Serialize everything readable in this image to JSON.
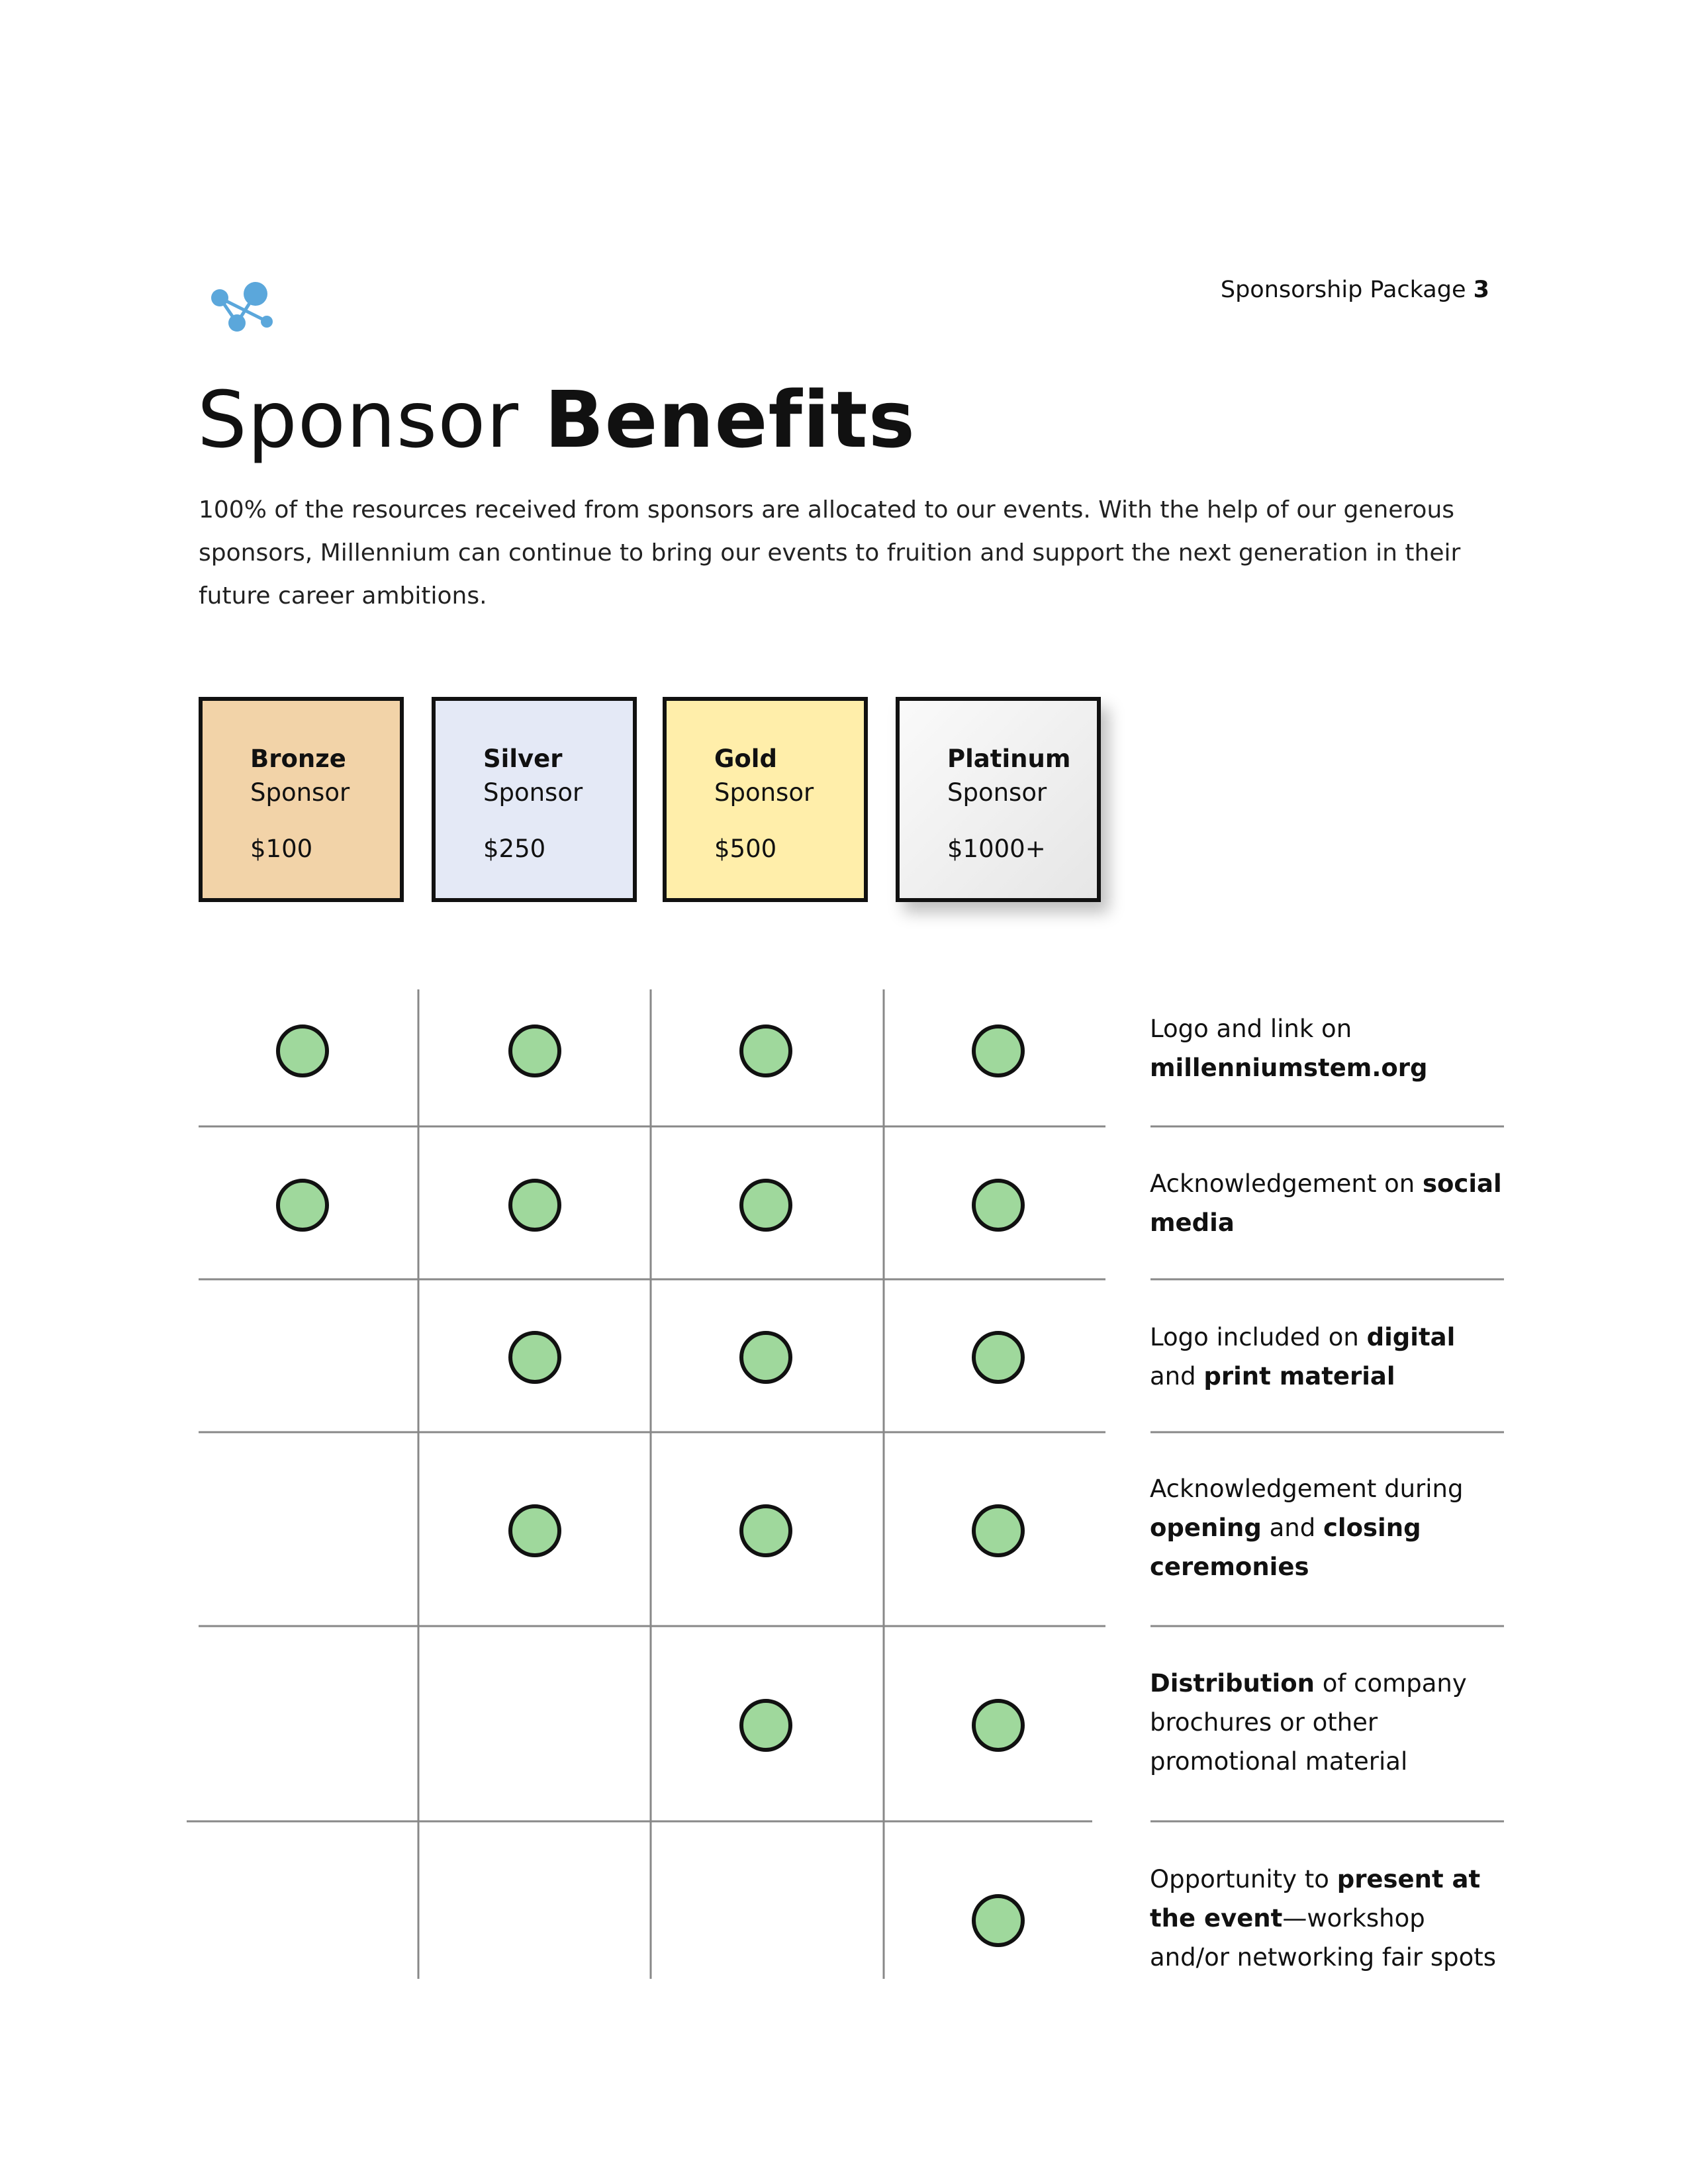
{
  "header": {
    "text": "Sponsorship Package",
    "page_number": "3"
  },
  "title": {
    "light": "Sponsor",
    "bold": "Benefits"
  },
  "intro": "100% of the resources received from sponsors are allocated to our events. With the help of our generous sponsors, Millennium can continue to bring our events to fruition and support the next generation in their future career ambitions.",
  "tiers": [
    {
      "name": "Bronze",
      "subtitle": "Sponsor",
      "price": "$100",
      "color": "#F2D3A8"
    },
    {
      "name": "Silver",
      "subtitle": "Sponsor",
      "price": "$250",
      "color": "#E4E9F6"
    },
    {
      "name": "Gold",
      "subtitle": "Sponsor",
      "price": "$500",
      "color": "#FFEEAA"
    },
    {
      "name": "Platinum",
      "subtitle": "Sponsor",
      "price": "$1000+",
      "color": "#F1F1F1"
    }
  ],
  "benefits": [
    {
      "parts": [
        {
          "t": "Logo and link on ",
          "b": false
        },
        {
          "t": "millenniumstem.org",
          "b": true
        }
      ],
      "included": [
        true,
        true,
        true,
        true
      ]
    },
    {
      "parts": [
        {
          "t": "Acknowledgement on ",
          "b": false
        },
        {
          "t": "social media",
          "b": true
        }
      ],
      "included": [
        true,
        true,
        true,
        true
      ]
    },
    {
      "parts": [
        {
          "t": "Logo included on ",
          "b": false
        },
        {
          "t": "digital",
          "b": true
        },
        {
          "t": " and ",
          "b": false
        },
        {
          "t": "print material",
          "b": true
        }
      ],
      "included": [
        false,
        true,
        true,
        true
      ]
    },
    {
      "parts": [
        {
          "t": "Acknowledgement during ",
          "b": false
        },
        {
          "t": "opening",
          "b": true
        },
        {
          "t": " and ",
          "b": false
        },
        {
          "t": "closing ceremonies",
          "b": true
        }
      ],
      "included": [
        false,
        true,
        true,
        true
      ]
    },
    {
      "parts": [
        {
          "t": "Distribution",
          "b": true
        },
        {
          "t": " of company brochures or other promotional material",
          "b": false
        }
      ],
      "included": [
        false,
        false,
        true,
        true
      ]
    },
    {
      "parts": [
        {
          "t": "Opportunity to ",
          "b": false
        },
        {
          "t": "present at the event",
          "b": true
        },
        {
          "t": "—workshop and/or networking fair spots",
          "b": false
        }
      ],
      "included": [
        false,
        false,
        false,
        true
      ]
    }
  ],
  "colors": {
    "check": "#9FD89C",
    "grid_line": "#888888",
    "logo": "#5BA7DB"
  },
  "icons": {
    "logo": "molecule-logo-icon",
    "included": "check-circle-icon"
  }
}
